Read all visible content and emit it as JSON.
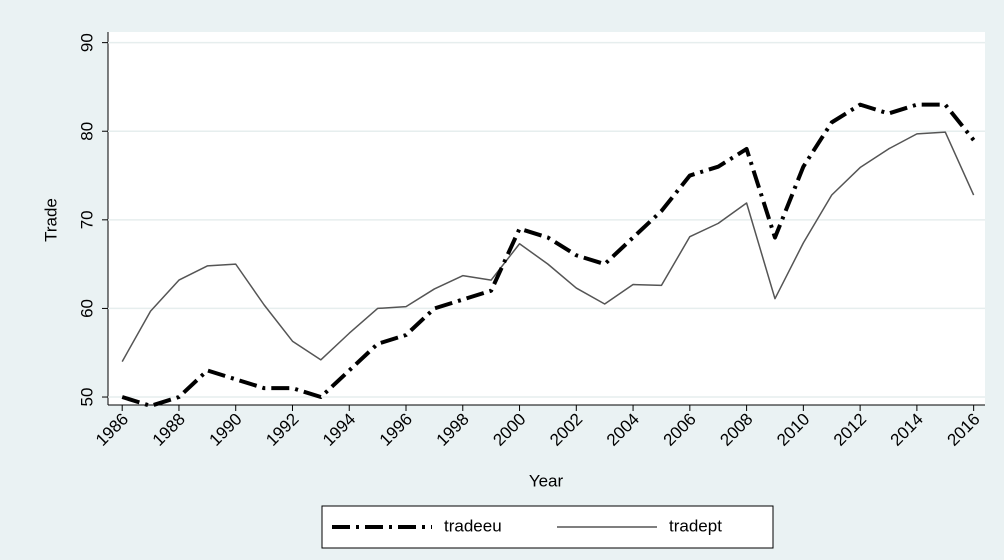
{
  "chart_data": {
    "type": "line",
    "x_label": "Year",
    "y_label": "Trade",
    "x": [
      1986,
      1987,
      1988,
      1989,
      1990,
      1991,
      1992,
      1993,
      1994,
      1995,
      1996,
      1997,
      1998,
      1999,
      2000,
      2001,
      2002,
      2003,
      2004,
      2005,
      2006,
      2007,
      2008,
      2009,
      2010,
      2011,
      2012,
      2013,
      2014,
      2015,
      2016
    ],
    "series": [
      {
        "name": "tradeeu",
        "color": "#000000",
        "line_style": "dashdot",
        "values": [
          50,
          49,
          50,
          53,
          52,
          51,
          51,
          50,
          53,
          56,
          57,
          60,
          61,
          62,
          69,
          68,
          66,
          65,
          68,
          71,
          75,
          76,
          78,
          68,
          76,
          81,
          83,
          82,
          83,
          83,
          79
        ]
      },
      {
        "name": "tradept",
        "color": "#555555",
        "line_style": "solid",
        "values": [
          54,
          59.7,
          63.2,
          64.8,
          65,
          60.4,
          56.3,
          54.2,
          57.2,
          60,
          60.2,
          62.2,
          63.7,
          63.2,
          67.3,
          65,
          62.3,
          60.5,
          62.7,
          62.6,
          68.1,
          69.6,
          71.9,
          61.1,
          67.4,
          72.8,
          75.9,
          78,
          79.7,
          79.9,
          72.8
        ]
      }
    ],
    "xlim": [
      1985.5,
      2016.4
    ],
    "xticks": [
      1986,
      1988,
      1990,
      1992,
      1994,
      1996,
      1998,
      2000,
      2002,
      2004,
      2006,
      2008,
      2010,
      2012,
      2014,
      2016
    ],
    "ylim": [
      49.1,
      91.2
    ],
    "yticks": [
      50,
      60,
      70,
      80,
      90
    ],
    "grid": true,
    "legend": "bottom"
  }
}
